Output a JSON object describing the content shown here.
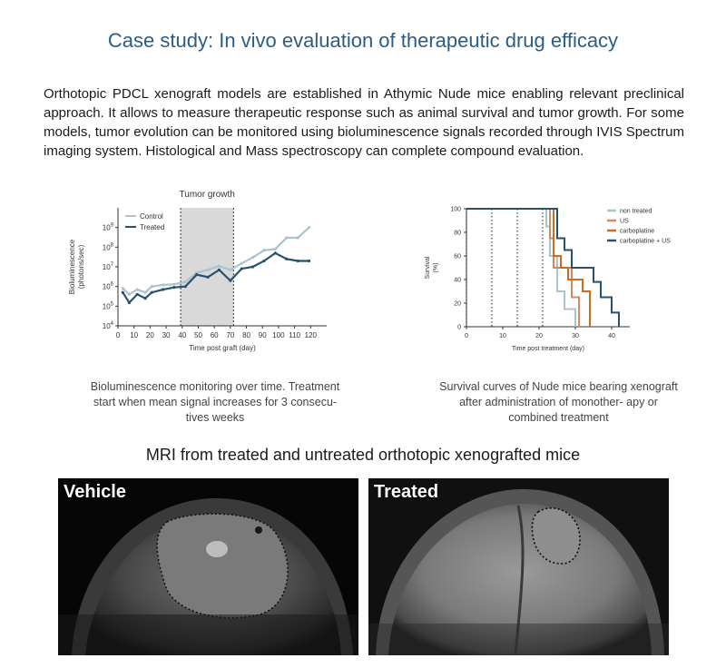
{
  "title": "Case study: In vivo evaluation of therapeutic drug efficacy",
  "intro": "Orthotopic PDCL xenograft models are established in Athymic Nude mice enabling relevant preclinical approach. It allows to measure therapeutic response such as animal survival and tumor growth. For some models, tumor evolution can be monitored using bioluminescence signals recorded through IVIS Spectrum imaging system. Histological and Mass spectroscopy can complete compound evaluation.",
  "colors": {
    "title": "#2b5d86",
    "control": "#a9c3cf",
    "treated": "#27526b",
    "shade": "#d9d9d9"
  },
  "chart_data": [
    {
      "type": "line",
      "title": "Tumor growth",
      "xlabel": "Time post graft (day)",
      "ylabel": "Bioluminescence (photons/sec)",
      "yscale": "log",
      "xlim": [
        0,
        130
      ],
      "ylim": [
        10000,
        10000000000
      ],
      "x_ticks": [
        0,
        10,
        20,
        30,
        40,
        50,
        60,
        70,
        80,
        90,
        100,
        110,
        120
      ],
      "y_ticks": [
        "10^4",
        "10^5",
        "10^6",
        "10^7",
        "10^8",
        "10^9"
      ],
      "shaded_region": [
        39,
        72
      ],
      "legend_position": "top-left",
      "series": [
        {
          "name": "Control",
          "x": [
            3,
            7,
            12,
            17,
            21,
            28,
            35,
            42,
            49,
            56,
            63,
            70,
            77,
            84,
            91,
            98,
            105,
            112,
            119
          ],
          "y": [
            800000,
            400000,
            700000,
            500000,
            1000000,
            1200000,
            1300000,
            1700000,
            5000000,
            7000000,
            11000000,
            7000000,
            15000000,
            30000000,
            70000000,
            80000000,
            300000000,
            300000000,
            1000000000
          ]
        },
        {
          "name": "Treated",
          "x": [
            3,
            7,
            12,
            17,
            21,
            28,
            35,
            42,
            49,
            56,
            63,
            70,
            77,
            84,
            91,
            98,
            105,
            112,
            119
          ],
          "y": [
            500000,
            150000,
            400000,
            250000,
            500000,
            700000,
            900000,
            1000000,
            4000000,
            3000000,
            7000000,
            2000000,
            8000000,
            10000000,
            20000000,
            50000000,
            25000000,
            20000000,
            20000000
          ]
        }
      ]
    },
    {
      "type": "line",
      "title": "",
      "xlabel": "Time post treatment (day)",
      "ylabel": "Survival (%)",
      "xlim": [
        0,
        45
      ],
      "ylim": [
        0,
        100
      ],
      "x_ticks": [
        0,
        10,
        20,
        30,
        40
      ],
      "y_ticks": [
        0,
        20,
        40,
        60,
        80,
        100
      ],
      "treatment_days": [
        0,
        7,
        14,
        21
      ],
      "legend_position": "top-right",
      "series": [
        {
          "name": "non treated",
          "x": [
            0,
            21,
            22,
            23,
            25,
            27,
            29,
            30
          ],
          "y": [
            100,
            100,
            85,
            60,
            30,
            15,
            15,
            0
          ]
        },
        {
          "name": "US",
          "x": [
            0,
            22,
            23,
            24,
            29,
            31
          ],
          "y": [
            100,
            100,
            75,
            50,
            25,
            0
          ]
        },
        {
          "name": "carboplatine",
          "x": [
            0,
            23,
            24,
            26,
            28,
            32,
            34
          ],
          "y": [
            100,
            100,
            60,
            50,
            40,
            30,
            0
          ]
        },
        {
          "name": "carboplatine + US",
          "x": [
            0,
            24,
            25,
            27,
            29,
            33,
            35,
            37,
            40,
            42
          ],
          "y": [
            100,
            100,
            75,
            65,
            50,
            50,
            38,
            25,
            12,
            0
          ]
        }
      ]
    }
  ],
  "captions": {
    "growth": "Bioluminescence monitoring over time. Treatment start when mean signal increases for 3 consecu- tives weeks",
    "survival": "Survival curves of Nude mice bearing xenograft after administration of monother- apy or combined treatment"
  },
  "mri": {
    "title": "MRI from treated and untreated orthotopic xenografted mice",
    "vehicle": "Vehicle",
    "treated": "Treated"
  }
}
